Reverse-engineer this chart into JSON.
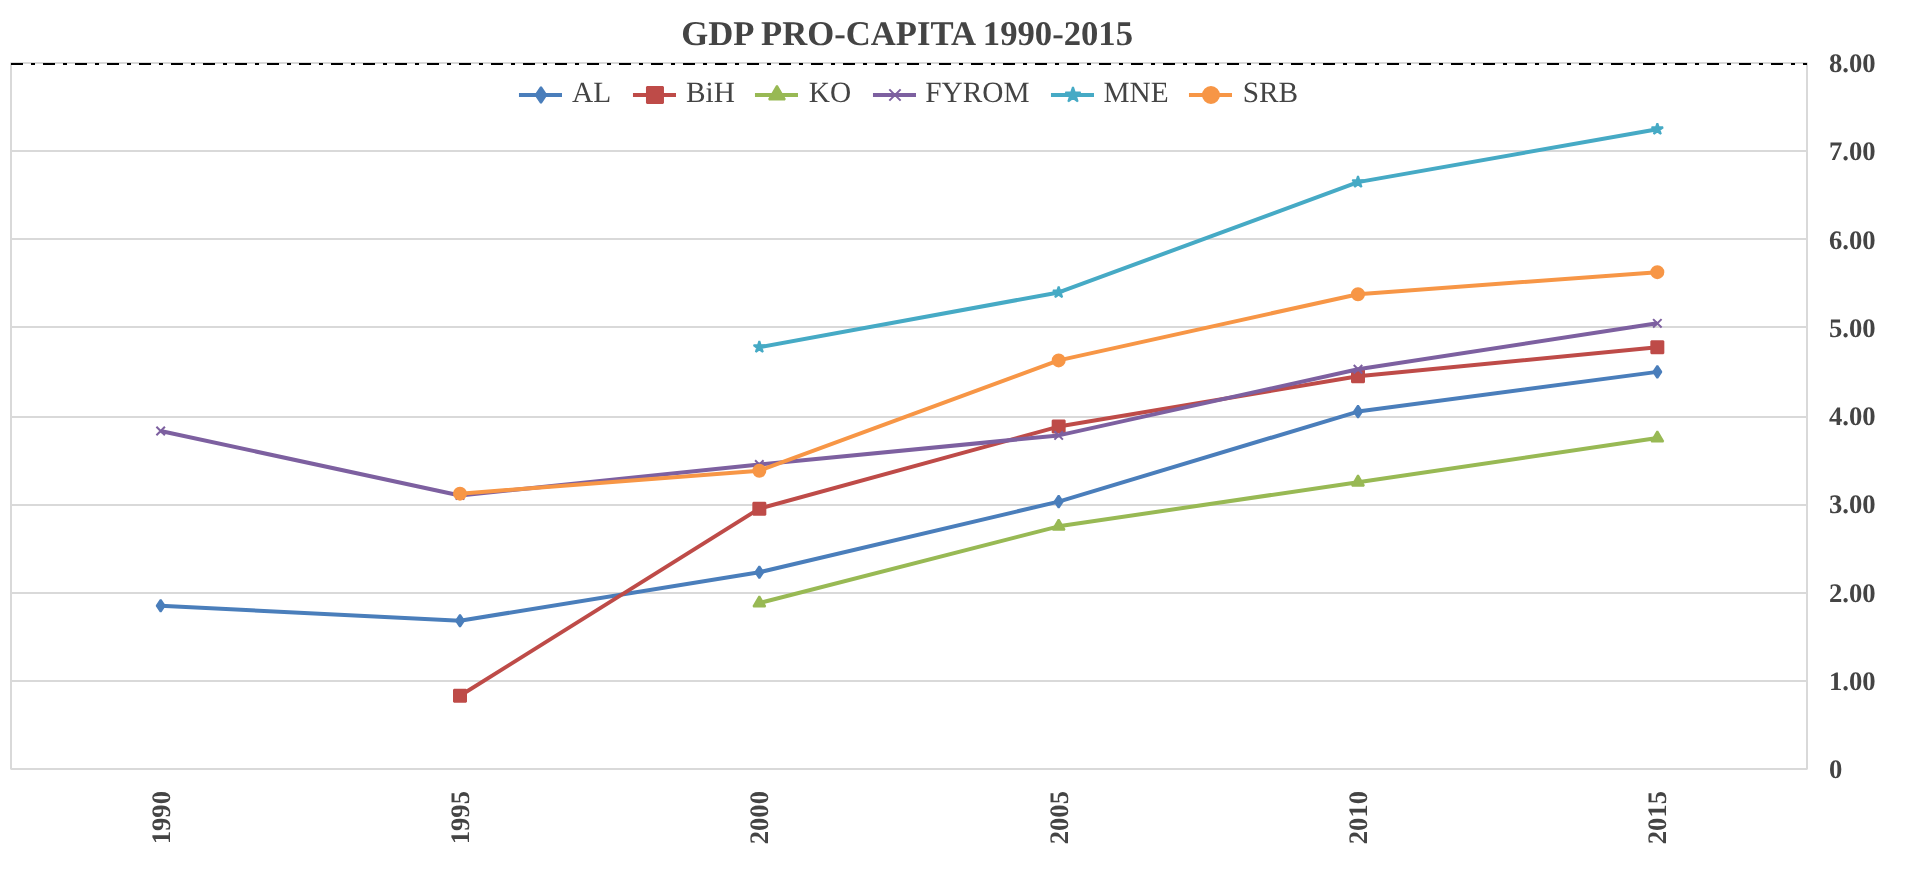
{
  "chart_data": {
    "type": "line",
    "title": "GDP PRO-CAPITA 1990-2015",
    "categories": [
      "1990",
      "1995",
      "2000",
      "2005",
      "2010",
      "2015"
    ],
    "ylim": [
      0,
      8
    ],
    "yticks": [
      {
        "value": 0,
        "label": "0"
      },
      {
        "value": 1,
        "label": "1.00"
      },
      {
        "value": 2,
        "label": "2.00"
      },
      {
        "value": 3,
        "label": "3.00"
      },
      {
        "value": 4,
        "label": "4.00"
      },
      {
        "value": 5,
        "label": "5.00"
      },
      {
        "value": 6,
        "label": "6.00"
      },
      {
        "value": 7,
        "label": "7.00"
      },
      {
        "value": 8,
        "label": "8.00"
      }
    ],
    "grid": "y",
    "legend": "top",
    "line_style": "solid",
    "ref_lines": [
      {
        "axis": "y",
        "value": 8,
        "label": null,
        "color": "#000000",
        "line_style": "dashed"
      }
    ],
    "series": [
      {
        "name": "AL",
        "color": "#4a7ebb",
        "marker": "diamond",
        "values": [
          1.85,
          1.68,
          2.23,
          3.03,
          4.05,
          4.5
        ]
      },
      {
        "name": "BiH",
        "color": "#be4b48",
        "marker": "square",
        "values": [
          null,
          0.83,
          2.95,
          3.88,
          4.45,
          4.78
        ]
      },
      {
        "name": "KO",
        "color": "#98b954",
        "marker": "triangle",
        "values": [
          null,
          null,
          1.88,
          2.75,
          3.25,
          3.75
        ]
      },
      {
        "name": "FYROM",
        "color": "#7d60a0",
        "marker": "cross",
        "values": [
          3.83,
          3.1,
          3.45,
          3.78,
          4.53,
          5.05
        ]
      },
      {
        "name": "MNE",
        "color": "#46aac5",
        "marker": "star",
        "values": [
          null,
          null,
          4.78,
          5.4,
          6.65,
          7.25
        ]
      },
      {
        "name": "SRB",
        "color": "#f79646",
        "marker": "circle",
        "values": [
          null,
          3.12,
          3.38,
          4.63,
          5.38,
          5.63
        ]
      }
    ]
  }
}
